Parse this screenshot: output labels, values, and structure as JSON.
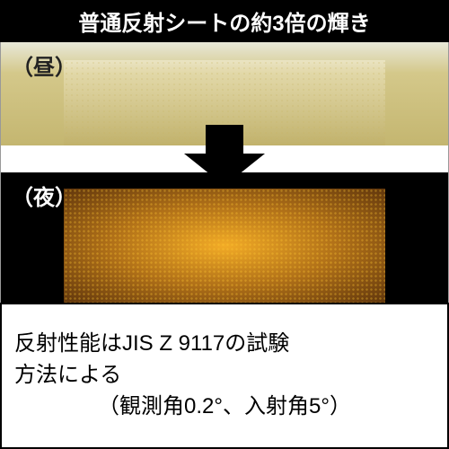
{
  "header": {
    "text": "普通反射シートの約3倍の輝き",
    "background_color": "#000000",
    "text_color": "#ffffff",
    "font_size": 24
  },
  "comparison": {
    "day": {
      "label": "（昼）",
      "background_gradient": [
        "#e8e8d8",
        "#d4c88a",
        "#c4b670"
      ],
      "pattern_color": "#c8b464",
      "label_color": "#222222"
    },
    "night": {
      "label": "（夜）",
      "background_color": "#000000",
      "reflect_gradient": [
        "#ffb428",
        "#dc8c1e",
        "#a05a14"
      ],
      "pattern_color": "#ffc832",
      "label_color": "#ffffff"
    },
    "arrow": {
      "color": "#000000",
      "direction": "down"
    }
  },
  "footer": {
    "line1": "反射性能はJIS Z 9117の試験",
    "line2": "方法による",
    "line3": "（観測角0.2°、入射角5°）",
    "border_color": "#000000",
    "font_size": 24
  }
}
